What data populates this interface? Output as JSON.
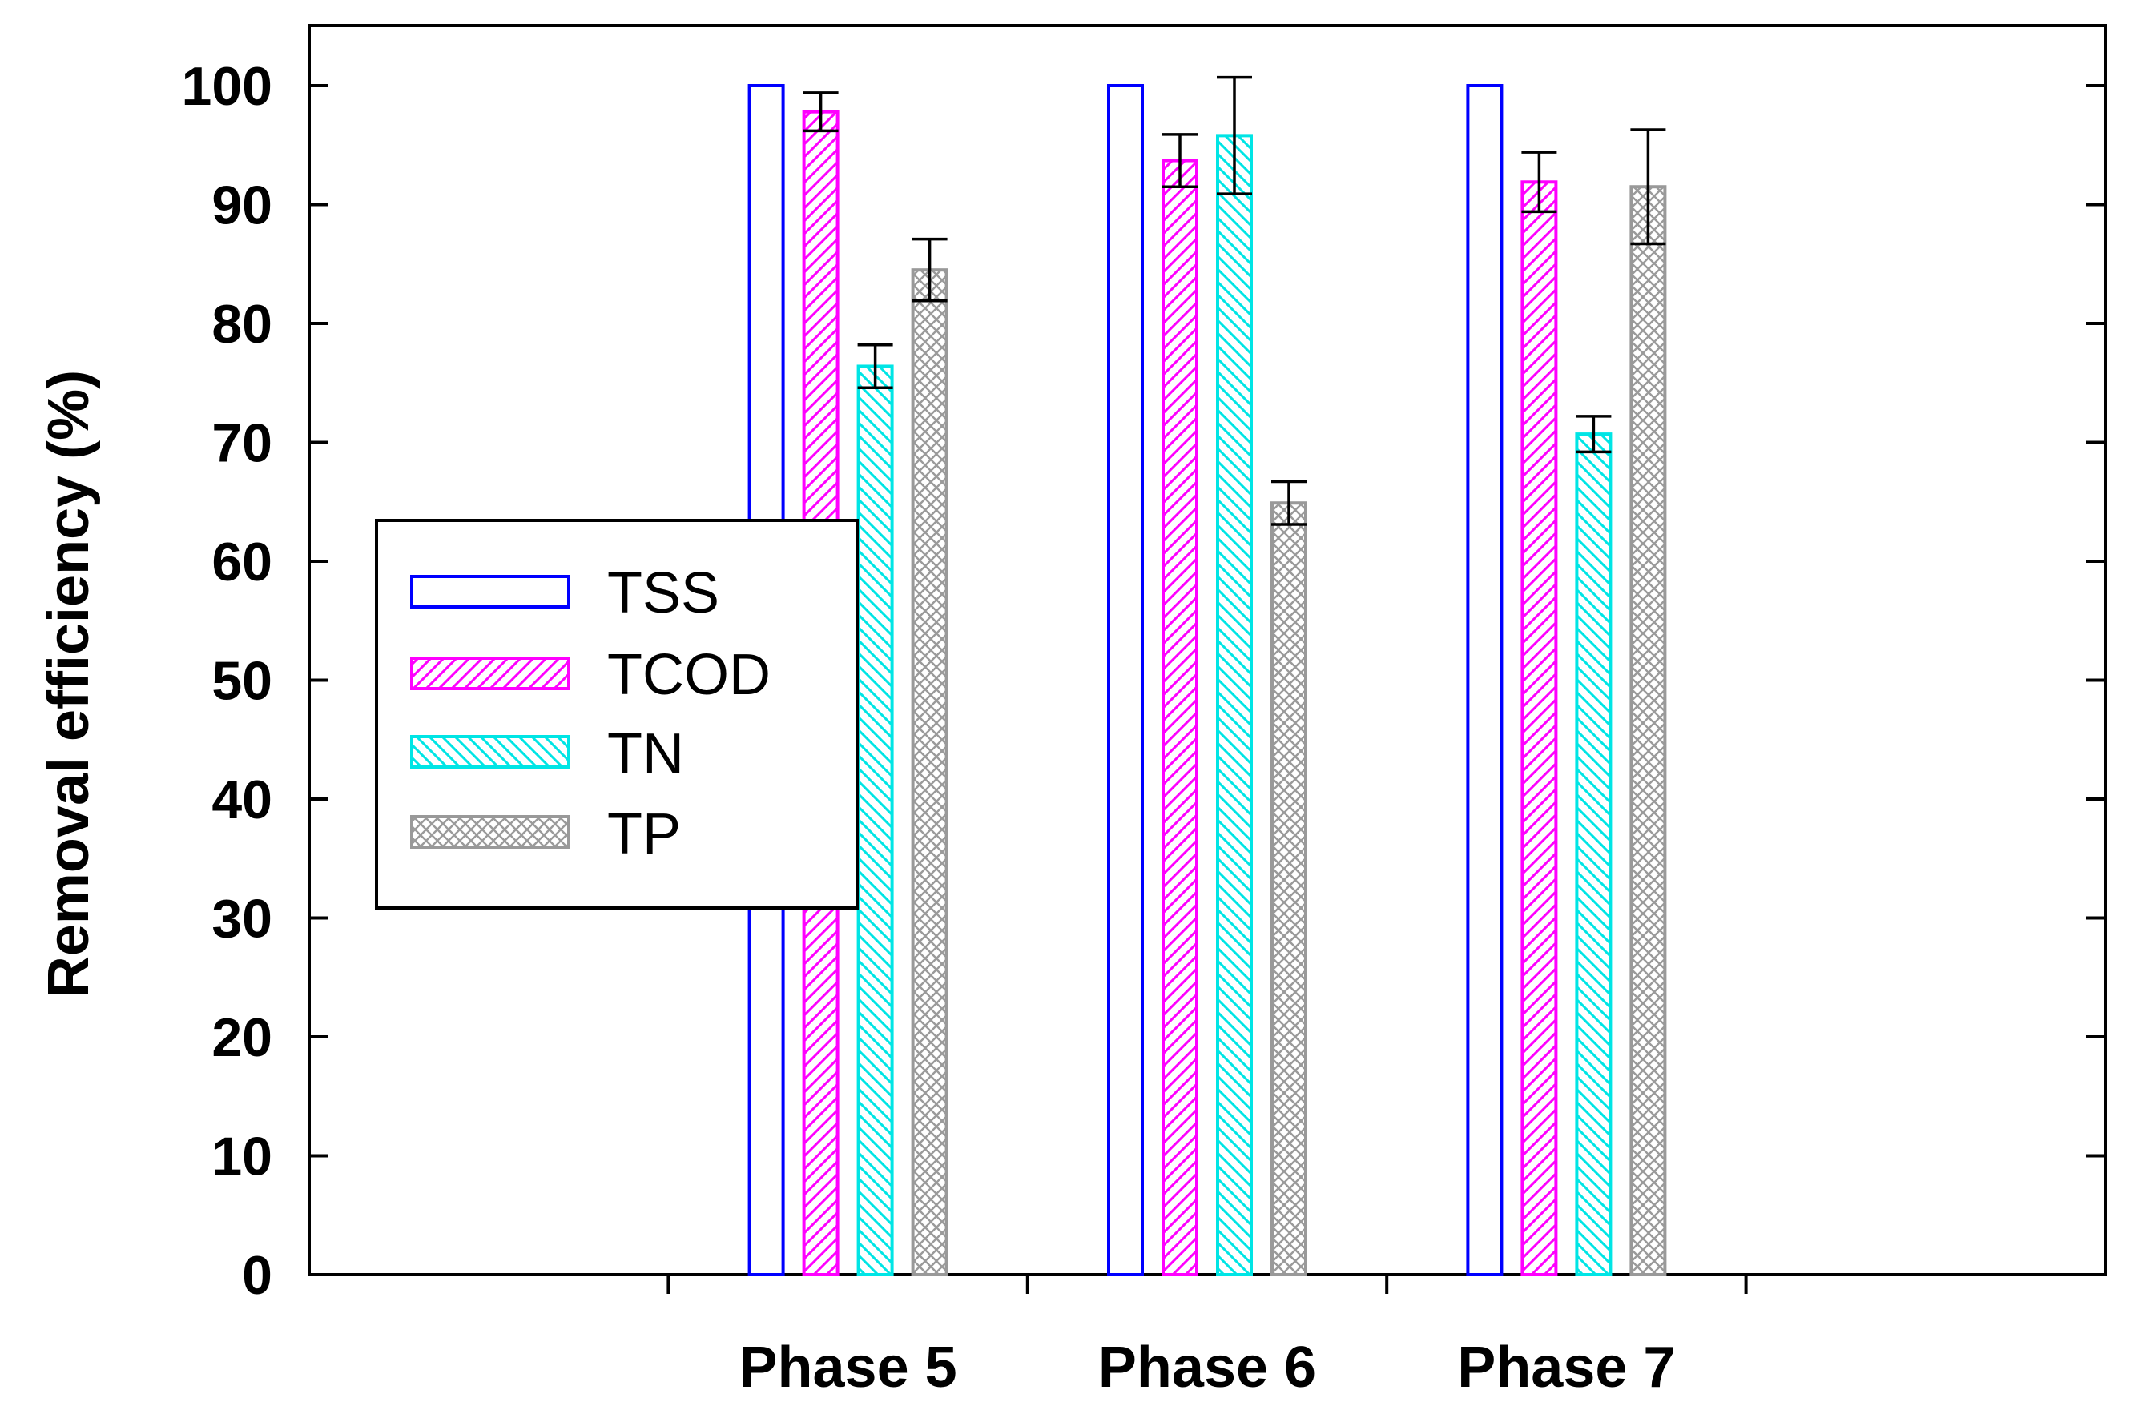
{
  "chart_data": {
    "type": "bar",
    "title": "",
    "xlabel": "",
    "ylabel": "Removal efficiency (%)",
    "ylim": [
      0,
      100
    ],
    "yticks": [
      0,
      10,
      20,
      30,
      40,
      50,
      60,
      70,
      80,
      90,
      100
    ],
    "categories": [
      "",
      "Phase 5",
      "Phase 6",
      "Phase 7",
      ""
    ],
    "grid": false,
    "legend_position": "middle-left",
    "series": [
      {
        "name": "TSS",
        "color": "#0000ff",
        "pattern": "none",
        "values": [
          null,
          100,
          100,
          100,
          null
        ],
        "errors": [
          null,
          null,
          null,
          null,
          null
        ]
      },
      {
        "name": "TCOD",
        "color": "#ff00ff",
        "pattern": "hatch-right",
        "values": [
          null,
          97.8,
          93.7,
          91.9,
          null
        ],
        "errors": [
          null,
          1.6,
          2.2,
          2.5,
          null
        ]
      },
      {
        "name": "TN",
        "color": "#00e5e5",
        "pattern": "hatch-left",
        "values": [
          null,
          76.4,
          95.8,
          70.7,
          null
        ],
        "errors": [
          null,
          1.8,
          4.9,
          1.5,
          null
        ]
      },
      {
        "name": "TP",
        "color": "#999999",
        "pattern": "crosshatch",
        "values": [
          null,
          84.5,
          64.9,
          91.5,
          null
        ],
        "errors": [
          null,
          2.6,
          1.8,
          4.8,
          null
        ]
      }
    ]
  }
}
